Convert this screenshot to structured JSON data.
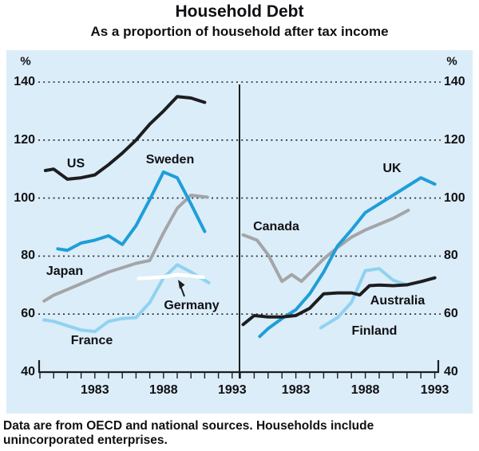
{
  "title": "Household Debt",
  "subtitle": "As a proportion of household after tax income",
  "unit": "%",
  "footnote": {
    "line1": "Data are from OECD and national sources. Households include",
    "line2": "unincorporated enterprises."
  },
  "colors": {
    "background": "#dbedf8",
    "black": "#1d1d1f",
    "blue": "#1e9ed9",
    "light_blue": "#8fd2f1",
    "gray": "#a3a5a8",
    "white": "#ffffff",
    "text": "#101014"
  },
  "chart_data": {
    "type": "line",
    "title": "Household Debt",
    "subtitle": "As a proportion of household after tax income",
    "ylabel": "%",
    "ylim": [
      40,
      145
    ],
    "yticks": [
      40,
      60,
      80,
      100,
      120,
      140
    ],
    "grid": "dotted horizontal lines at 60, 80, 100, 120, 140; solid baseline at 40",
    "legend_position": "labels next to lines",
    "panels": [
      {
        "side": "left",
        "year_start": 1979,
        "year_end": 1993,
        "labeled_ticks": [
          "1983",
          "1988",
          "1993"
        ],
        "series": [
          {
            "name": "Japan",
            "color": "gray",
            "points": [
              [
                1979.3,
                64.5
              ],
              [
                1980,
                66.5
              ],
              [
                1981,
                68.5
              ],
              [
                1982,
                70.5
              ],
              [
                1983,
                72.5
              ],
              [
                1984,
                74.5
              ],
              [
                1985,
                76
              ],
              [
                1986,
                77.5
              ],
              [
                1987,
                78.5
              ],
              [
                1988,
                88
              ],
              [
                1989,
                96.5
              ],
              [
                1990,
                101
              ],
              [
                1991.2,
                100.3
              ]
            ]
          },
          {
            "name": "France",
            "color": "light_blue",
            "points": [
              [
                1979.3,
                58
              ],
              [
                1980,
                57.5
              ],
              [
                1981,
                56
              ],
              [
                1982,
                54.5
              ],
              [
                1983,
                54
              ],
              [
                1984,
                57.5
              ],
              [
                1985,
                58.5
              ],
              [
                1986,
                58.8
              ],
              [
                1987,
                64
              ],
              [
                1988,
                72.5
              ],
              [
                1989,
                77
              ],
              [
                1990,
                74.5
              ],
              [
                1991.3,
                70.8
              ]
            ]
          },
          {
            "name": "Sweden",
            "color": "blue",
            "points": [
              [
                1980.3,
                82.5
              ],
              [
                1981,
                82
              ],
              [
                1982,
                84.5
              ],
              [
                1983,
                85.5
              ],
              [
                1984,
                87
              ],
              [
                1985,
                84
              ],
              [
                1986,
                90.5
              ],
              [
                1987,
                99.5
              ],
              [
                1988,
                109
              ],
              [
                1989,
                107
              ],
              [
                1990,
                98
              ],
              [
                1991,
                88.5
              ]
            ]
          },
          {
            "name": "US",
            "color": "black",
            "points": [
              [
                1979.4,
                109.5
              ],
              [
                1980,
                110
              ],
              [
                1981,
                106.5
              ],
              [
                1982,
                107
              ],
              [
                1983,
                108
              ],
              [
                1984,
                111.5
              ],
              [
                1985,
                115.5
              ],
              [
                1986,
                120
              ],
              [
                1987,
                125.5
              ],
              [
                1988,
                130
              ],
              [
                1989,
                135
              ],
              [
                1990,
                134.5
              ],
              [
                1991,
                133
              ]
            ]
          },
          {
            "name": "Germany",
            "color": "white",
            "points": [
              [
                1986.2,
                72.3
              ],
              [
                1987,
                72.5
              ],
              [
                1988,
                72.8
              ],
              [
                1989,
                73.6
              ],
              [
                1990,
                73.2
              ],
              [
                1990.9,
                72.7
              ]
            ]
          }
        ]
      },
      {
        "side": "right",
        "year_start": 1979,
        "year_end": 1993,
        "labeled_ticks": [
          "1983",
          "1988",
          "1993"
        ],
        "series": [
          {
            "name": "Canada",
            "color": "gray",
            "points": [
              [
                1979.2,
                87.3
              ],
              [
                1980.2,
                85.5
              ],
              [
                1981,
                80.5
              ],
              [
                1982,
                71.3
              ],
              [
                1982.7,
                73.6
              ],
              [
                1983.4,
                71.3
              ],
              [
                1985,
                79
              ],
              [
                1986,
                83
              ],
              [
                1987,
                86.5
              ],
              [
                1988,
                89
              ],
              [
                1989,
                91
              ],
              [
                1990,
                93
              ],
              [
                1991.1,
                95.8
              ]
            ]
          },
          {
            "name": "Finland",
            "color": "light_blue",
            "points": [
              [
                1984.8,
                55.3
              ],
              [
                1986,
                58.8
              ],
              [
                1987,
                64
              ],
              [
                1988,
                75
              ],
              [
                1989,
                75.7
              ],
              [
                1990,
                71.7
              ],
              [
                1991,
                70
              ]
            ]
          },
          {
            "name": "UK",
            "color": "blue",
            "points": [
              [
                1980.4,
                52.3
              ],
              [
                1981,
                55
              ],
              [
                1982,
                58.5
              ],
              [
                1983,
                61.5
              ],
              [
                1984,
                67
              ],
              [
                1985,
                74.5
              ],
              [
                1986,
                83.5
              ],
              [
                1987,
                89
              ],
              [
                1988,
                95
              ],
              [
                1989,
                98
              ],
              [
                1990,
                101
              ],
              [
                1991,
                104
              ],
              [
                1992,
                107
              ],
              [
                1993,
                104.8
              ]
            ]
          },
          {
            "name": "Australia",
            "color": "black",
            "points": [
              [
                1979.2,
                56.4
              ],
              [
                1980,
                59.5
              ],
              [
                1981,
                59
              ],
              [
                1982,
                59
              ],
              [
                1983,
                59.5
              ],
              [
                1984,
                62
              ],
              [
                1985,
                67
              ],
              [
                1986,
                67.3
              ],
              [
                1987,
                67.3
              ],
              [
                1987.6,
                66.6
              ],
              [
                1988.3,
                69.8
              ],
              [
                1989,
                70
              ],
              [
                1990,
                69.8
              ],
              [
                1991,
                70.1
              ],
              [
                1992,
                71.2
              ],
              [
                1993,
                72.5
              ]
            ]
          }
        ]
      }
    ],
    "annotations": [
      {
        "text": "Germany",
        "type": "label-with-arrow",
        "target_series": "Germany"
      }
    ]
  }
}
